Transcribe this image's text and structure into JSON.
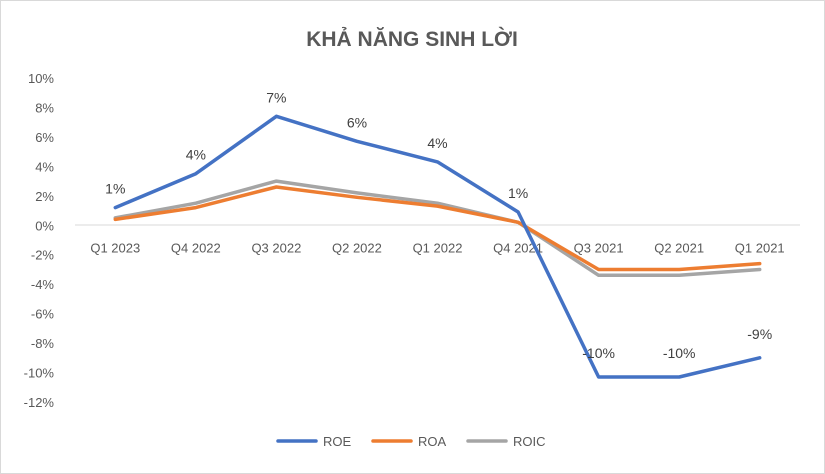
{
  "chart_data": {
    "type": "line",
    "title": "KHẢ NĂNG SINH LỜI",
    "categories": [
      "Q1 2023",
      "Q4 2022",
      "Q3 2022",
      "Q2 2022",
      "Q1 2022",
      "Q4 2021",
      "Q3 2021",
      "Q2 2021",
      "Q1 2021"
    ],
    "series": [
      {
        "name": "ROE",
        "color": "#4472C4",
        "values": [
          1.2,
          3.5,
          7.4,
          5.7,
          4.3,
          0.9,
          -10.3,
          -10.3,
          -9.0
        ],
        "labels": [
          "1%",
          "4%",
          "7%",
          "6%",
          "4%",
          "1%",
          "-10%",
          "-10%",
          "-9%"
        ]
      },
      {
        "name": "ROA",
        "color": "#ED7D31",
        "values": [
          0.4,
          1.2,
          2.6,
          1.9,
          1.3,
          0.2,
          -3.0,
          -3.0,
          -2.6
        ]
      },
      {
        "name": "ROIC",
        "color": "#A5A5A5",
        "values": [
          0.5,
          1.5,
          3.0,
          2.2,
          1.5,
          0.2,
          -3.4,
          -3.4,
          -3.0
        ]
      }
    ],
    "yticks": [
      "10%",
      "8%",
      "6%",
      "4%",
      "2%",
      "0%",
      "-2%",
      "-4%",
      "-6%",
      "-8%",
      "-10%",
      "-12%"
    ],
    "ylim": [
      -12,
      10
    ],
    "grid": false,
    "legend": "bottom"
  }
}
